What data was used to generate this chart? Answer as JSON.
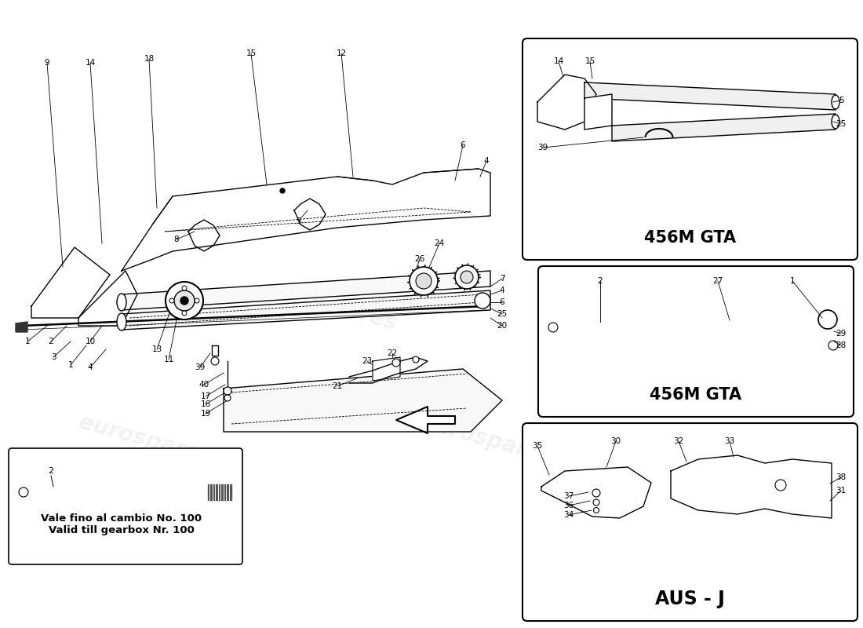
{
  "bg_color": "#ffffff",
  "line_color": "#000000",
  "label_color": "#000000",
  "watermark_color": "#cccccc",
  "box_label_456M_GTA_1": "456M GTA",
  "box_label_456M_GTA_2": "456M GTA",
  "box_label_AUS_J": "AUS - J",
  "inset_label_line1": "Vale fino al cambio No. 100",
  "inset_label_line2": "Valid till gearbox Nr. 100",
  "fig_width": 11.0,
  "fig_height": 8.0,
  "dpi": 100
}
